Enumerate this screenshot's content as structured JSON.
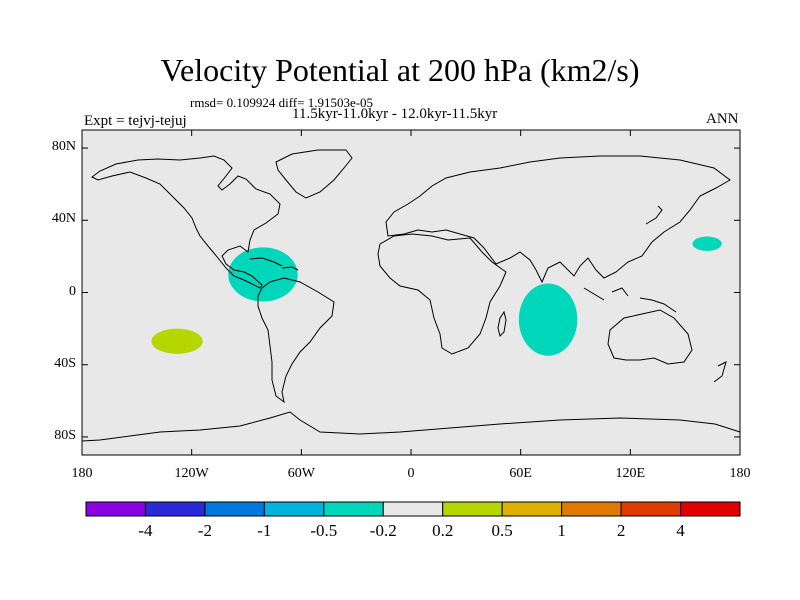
{
  "title": "Velocity Potential at 200 hPa (km2/s)",
  "stats_line": "rmsd= 0.109924 diff= 1.91503e-05",
  "period_line": "11.5kyr-11.0kyr - 12.0kyr-11.5kyr",
  "experiment_label": "Expt = tejvj-tejuj",
  "season_label": "ANN",
  "map": {
    "background": "#e8e8e8",
    "lon_range": [
      -180,
      180
    ],
    "lat_range": [
      -90,
      90
    ],
    "lat_ticks": [
      {
        "lat": 80,
        "label": "80N"
      },
      {
        "lat": 40,
        "label": "40N"
      },
      {
        "lat": 0,
        "label": "0"
      },
      {
        "lat": -40,
        "label": "40S"
      },
      {
        "lat": -80,
        "label": "80S"
      }
    ],
    "lon_ticks": [
      {
        "lon": -180,
        "label": "180"
      },
      {
        "lon": -120,
        "label": "120W"
      },
      {
        "lon": -60,
        "label": "60W"
      },
      {
        "lon": 0,
        "label": "0"
      },
      {
        "lon": 60,
        "label": "60E"
      },
      {
        "lon": 120,
        "label": "120E"
      },
      {
        "lon": 180,
        "label": "180"
      }
    ],
    "anomalies": [
      {
        "name": "caribbean-negative-anomaly",
        "center": [
          -81,
          10
        ],
        "radii": [
          19,
          15
        ],
        "color": "#00d6b9"
      },
      {
        "name": "indian-ocean-negative-anomaly",
        "center": [
          75,
          -15
        ],
        "radii": [
          16,
          20
        ],
        "color": "#00d6b9"
      },
      {
        "name": "north-pacific-negative-anomaly",
        "center": [
          162,
          27
        ],
        "radii": [
          8,
          4
        ],
        "color": "#00d6b9"
      },
      {
        "name": "south-pacific-positive-anomaly",
        "center": [
          -128,
          -27
        ],
        "radii": [
          14,
          7
        ],
        "color": "#b6d600"
      }
    ]
  },
  "colorbar": {
    "colors": [
      "#8a00e0",
      "#2a2ad6",
      "#0078dc",
      "#00b2e0",
      "#00d6b9",
      "#e8e8e8",
      "#b6d600",
      "#e0b000",
      "#e07a00",
      "#e03c00",
      "#e00000"
    ],
    "labels": [
      "-4",
      "-2",
      "-1",
      "-0.5",
      "-0.2",
      "0.2",
      "0.5",
      "1",
      "2",
      "4"
    ]
  }
}
